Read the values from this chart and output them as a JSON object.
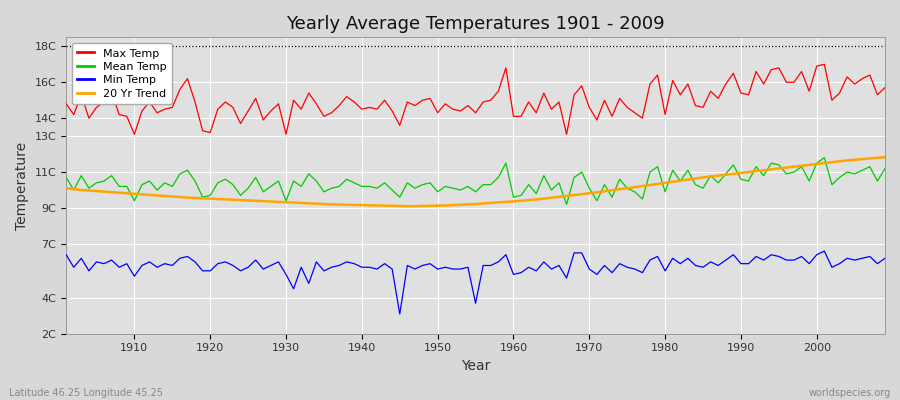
{
  "title": "Yearly Average Temperatures 1901 - 2009",
  "xlabel": "Year",
  "ylabel": "Temperature",
  "bottom_left": "Latitude 46.25 Longitude 45.25",
  "bottom_right": "worldspecies.org",
  "years_start": 1901,
  "years_end": 2009,
  "ylim": [
    2,
    18.5
  ],
  "xlim": [
    1901,
    2009
  ],
  "bg_color": "#e0e0e0",
  "fig_color": "#d8d8d8",
  "grid_color": "#ffffff",
  "dotted_line_y": 18,
  "legend_items": [
    {
      "label": "Max Temp",
      "color": "#ff0000"
    },
    {
      "label": "Mean Temp",
      "color": "#00cc00"
    },
    {
      "label": "Min Temp",
      "color": "#0000ff"
    },
    {
      "label": "20 Yr Trend",
      "color": "#ffa500"
    }
  ],
  "ytick_positions": [
    2,
    4,
    7,
    9,
    11,
    13,
    14,
    16,
    18
  ],
  "ytick_labels": [
    "2C",
    "4C",
    "7C",
    "9C",
    "11C",
    "13C",
    "14C",
    "16C",
    "18C"
  ],
  "xtick_positions": [
    1910,
    1920,
    1930,
    1940,
    1950,
    1960,
    1970,
    1980,
    1990,
    2000
  ],
  "max_temp": [
    14.8,
    14.2,
    15.3,
    14.0,
    14.6,
    14.9,
    15.4,
    14.2,
    14.1,
    13.1,
    14.4,
    14.9,
    14.3,
    14.5,
    14.6,
    15.6,
    16.2,
    14.9,
    13.3,
    13.2,
    14.5,
    14.9,
    14.6,
    13.7,
    14.4,
    15.1,
    13.9,
    14.4,
    14.8,
    13.1,
    15.0,
    14.5,
    15.4,
    14.8,
    14.1,
    14.3,
    14.7,
    15.2,
    14.9,
    14.5,
    14.6,
    14.5,
    15.0,
    14.4,
    13.6,
    14.9,
    14.7,
    15.0,
    15.1,
    14.3,
    14.8,
    14.5,
    14.4,
    14.7,
    14.3,
    14.9,
    15.0,
    15.5,
    16.8,
    14.1,
    14.1,
    14.9,
    14.3,
    15.4,
    14.5,
    14.9,
    13.1,
    15.3,
    15.8,
    14.6,
    13.9,
    15.0,
    14.1,
    15.1,
    14.6,
    14.3,
    14.0,
    15.9,
    16.4,
    14.2,
    16.1,
    15.3,
    15.9,
    14.7,
    14.6,
    15.5,
    15.1,
    15.9,
    16.5,
    15.4,
    15.3,
    16.6,
    15.9,
    16.7,
    16.8,
    16.0,
    16.0,
    16.6,
    15.5,
    16.9,
    17.0,
    15.0,
    15.4,
    16.3,
    15.9,
    16.2,
    16.4,
    15.3,
    15.7
  ],
  "mean_temp": [
    10.7,
    10.0,
    10.8,
    10.1,
    10.4,
    10.5,
    10.8,
    10.2,
    10.2,
    9.4,
    10.3,
    10.5,
    10.0,
    10.4,
    10.2,
    10.9,
    11.1,
    10.5,
    9.6,
    9.7,
    10.4,
    10.6,
    10.3,
    9.7,
    10.1,
    10.7,
    9.9,
    10.2,
    10.5,
    9.4,
    10.5,
    10.2,
    10.9,
    10.5,
    9.9,
    10.1,
    10.2,
    10.6,
    10.4,
    10.2,
    10.2,
    10.1,
    10.4,
    10.0,
    9.6,
    10.4,
    10.1,
    10.3,
    10.4,
    9.9,
    10.2,
    10.1,
    10.0,
    10.2,
    9.9,
    10.3,
    10.3,
    10.7,
    11.5,
    9.6,
    9.7,
    10.3,
    9.8,
    10.8,
    10.0,
    10.4,
    9.2,
    10.7,
    11.0,
    10.1,
    9.4,
    10.3,
    9.6,
    10.6,
    10.1,
    9.9,
    9.5,
    11.0,
    11.3,
    9.9,
    11.1,
    10.5,
    11.1,
    10.3,
    10.1,
    10.8,
    10.4,
    10.9,
    11.4,
    10.6,
    10.5,
    11.3,
    10.8,
    11.5,
    11.4,
    10.9,
    11.0,
    11.3,
    10.5,
    11.5,
    11.8,
    10.3,
    10.7,
    11.0,
    10.9,
    11.1,
    11.3,
    10.5,
    11.2
  ],
  "min_temp": [
    6.4,
    5.7,
    6.2,
    5.5,
    6.0,
    5.9,
    6.1,
    5.7,
    5.9,
    5.2,
    5.8,
    6.0,
    5.7,
    5.9,
    5.8,
    6.2,
    6.3,
    6.0,
    5.5,
    5.5,
    5.9,
    6.0,
    5.8,
    5.5,
    5.7,
    6.1,
    5.6,
    5.8,
    6.0,
    5.3,
    4.5,
    5.7,
    4.8,
    6.0,
    5.5,
    5.7,
    5.8,
    6.0,
    5.9,
    5.7,
    5.7,
    5.6,
    5.9,
    5.6,
    3.1,
    5.8,
    5.6,
    5.8,
    5.9,
    5.6,
    5.7,
    5.6,
    5.6,
    5.7,
    3.7,
    5.8,
    5.8,
    6.0,
    6.4,
    5.3,
    5.4,
    5.7,
    5.5,
    6.0,
    5.6,
    5.8,
    5.1,
    6.5,
    6.5,
    5.6,
    5.3,
    5.8,
    5.4,
    5.9,
    5.7,
    5.6,
    5.4,
    6.1,
    6.3,
    5.5,
    6.2,
    5.9,
    6.2,
    5.8,
    5.7,
    6.0,
    5.8,
    6.1,
    6.4,
    5.9,
    5.9,
    6.3,
    6.1,
    6.4,
    6.3,
    6.1,
    6.1,
    6.3,
    5.9,
    6.4,
    6.6,
    5.7,
    5.9,
    6.2,
    6.1,
    6.2,
    6.3,
    5.9,
    6.2
  ],
  "trend_values": [
    10.1,
    10.05,
    10.0,
    9.97,
    9.94,
    9.91,
    9.88,
    9.85,
    9.82,
    9.79,
    9.76,
    9.73,
    9.7,
    9.67,
    9.64,
    9.61,
    9.58,
    9.56,
    9.54,
    9.52,
    9.5,
    9.48,
    9.46,
    9.44,
    9.42,
    9.4,
    9.38,
    9.36,
    9.34,
    9.32,
    9.3,
    9.28,
    9.26,
    9.24,
    9.22,
    9.2,
    9.19,
    9.18,
    9.17,
    9.16,
    9.15,
    9.14,
    9.13,
    9.12,
    9.11,
    9.1,
    9.1,
    9.11,
    9.12,
    9.13,
    9.14,
    9.16,
    9.18,
    9.2,
    9.22,
    9.25,
    9.28,
    9.31,
    9.34,
    9.37,
    9.4,
    9.44,
    9.48,
    9.52,
    9.57,
    9.62,
    9.67,
    9.72,
    9.77,
    9.82,
    9.87,
    9.93,
    9.99,
    10.05,
    10.1,
    10.16,
    10.22,
    10.28,
    10.34,
    10.4,
    10.46,
    10.52,
    10.58,
    10.64,
    10.7,
    10.75,
    10.8,
    10.85,
    10.9,
    10.95,
    11.0,
    11.05,
    11.1,
    11.15,
    11.2,
    11.25,
    11.3,
    11.35,
    11.4,
    11.45,
    11.5,
    11.55,
    11.6,
    11.65,
    11.68,
    11.72,
    11.76,
    11.8,
    11.82
  ]
}
